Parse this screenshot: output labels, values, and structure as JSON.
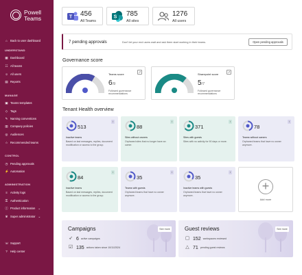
{
  "brand": {
    "name_line1": "Powell",
    "name_line2": "Teams"
  },
  "sidebar": {
    "back": "Back to user dashboard",
    "understand_heading": "UNDERSTAND",
    "understand": [
      "Dashboard",
      "All teams",
      "All users",
      "Reports"
    ],
    "manage_heading": "MANAGE",
    "manage": [
      "Teams templates",
      "Tags",
      "Naming conventions",
      "Company policies",
      "Audiences",
      "Recommended teams"
    ],
    "control_heading": "CONTROL",
    "control": [
      "Pending approvals",
      "Automation"
    ],
    "administration_heading": "ADMINISTRATION",
    "administration": [
      "Activity logs",
      "Authentication",
      "Product information",
      "Super administrator"
    ],
    "bottom": [
      "Support",
      "Help center"
    ]
  },
  "stats": [
    {
      "value": "456",
      "label": "All Teams",
      "icon": "teams-icon"
    },
    {
      "value": "785",
      "label": "All sites",
      "icon": "sharepoint-icon"
    },
    {
      "value": "1276",
      "label": "All users",
      "icon": "users-icon"
    }
  ],
  "pending": {
    "count_text": "7 pending approvals",
    "message": "Don't let your end users wait and ask them start working in their teams.",
    "button": "Open pending approvals"
  },
  "governance": {
    "title": "Governance score",
    "cards": [
      {
        "title": "Teams score",
        "score": "6",
        "out_of": "/9",
        "desc": "Followed governance recommendations",
        "fraction": 0.667,
        "color": "#4a4fa8",
        "icon": "teams-icon"
      },
      {
        "title": "Sharepoint score",
        "score": "5",
        "out_of": "/7",
        "desc": "Followed governance recommendations",
        "fraction": 0.714,
        "color": "#1a8a85",
        "icon": "sharepoint-icon"
      }
    ]
  },
  "health": {
    "title": "Tenant Health overview",
    "cards": [
      {
        "value": "513",
        "title": "Inactive teams",
        "desc": "Based on last messages, replies, document modification or access to the group.",
        "theme": "purple"
      },
      {
        "value": "88",
        "title": "Sites without owners",
        "desc": "Orphaned sites that no longer have an owner.",
        "theme": "green"
      },
      {
        "value": "371",
        "title": "Sites with guests",
        "desc": "Sites with no activity for 90 days or more.",
        "theme": "green"
      },
      {
        "value": "78",
        "title": "Teams without owners",
        "desc": "Orphaned teams that have no owner anymore.",
        "theme": "purple"
      },
      {
        "value": "84",
        "title": "Inactive teams",
        "desc": "Based on last messages, replies, document modification or access to the group.",
        "theme": "green"
      },
      {
        "value": "35",
        "title": "Teams with guests",
        "desc": "Orphaned teams that have no owner anymore.",
        "theme": "purple"
      },
      {
        "value": "35",
        "title": "Inactive teams with guests",
        "desc": "Orphaned teams that have no owner anymore.",
        "theme": "purple"
      }
    ],
    "add_label": "Add more"
  },
  "campaigns": {
    "title": "Campaigns",
    "see_more": "See more",
    "rows": [
      {
        "value": "6",
        "text": "active campaigns",
        "icon": "rocket-icon"
      },
      {
        "value": "135",
        "text": "actions taken since 10/11/2024",
        "icon": "checklist-icon"
      }
    ]
  },
  "reviews": {
    "title": "Guest reviews",
    "see_more": "See more",
    "rows": [
      {
        "value": "152",
        "text": "workspaces reviewed",
        "icon": "review-icon"
      },
      {
        "value": "71",
        "text": "pending guest reviews",
        "icon": "warning-icon"
      }
    ]
  },
  "colors": {
    "brand": "#7a1744",
    "teams": "#4a4fa8",
    "sharepoint": "#1a8a85"
  }
}
